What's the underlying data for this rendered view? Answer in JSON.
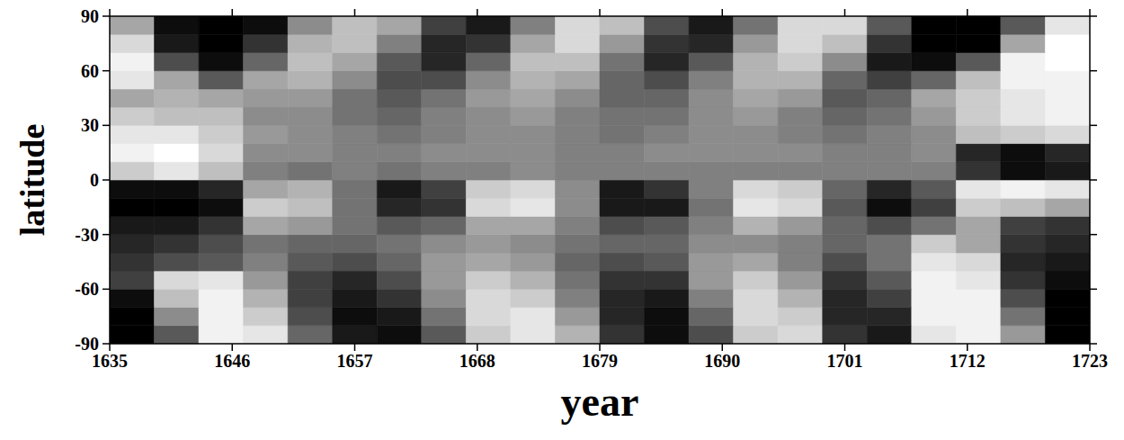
{
  "chart_data": {
    "type": "heatmap",
    "xlabel": "year",
    "ylabel": "latitude",
    "xlim": [
      1635,
      1723
    ],
    "xticks": [
      1635,
      1646,
      1657,
      1668,
      1679,
      1690,
      1701,
      1712,
      1723
    ],
    "ylim": [
      -90,
      90
    ],
    "yticks": [
      -90,
      -60,
      -30,
      0,
      30,
      60,
      90
    ],
    "zlim": [
      -1,
      1
    ],
    "x_bins": [
      1635,
      1639,
      1643,
      1647,
      1651,
      1655,
      1659,
      1663,
      1667,
      1671,
      1675,
      1679,
      1683,
      1687,
      1691,
      1695,
      1699,
      1703,
      1707,
      1711,
      1715,
      1719,
      1723
    ],
    "y_bins": [
      -90,
      -80,
      -70,
      -60,
      -50,
      -40,
      -30,
      -20,
      -10,
      0,
      10,
      20,
      30,
      40,
      50,
      60,
      70,
      80,
      90
    ],
    "cells": [
      [
        -1,
        -0.3,
        0.9,
        0.8,
        -0.2,
        -0.8,
        -0.9,
        -0.3,
        0.6,
        0.8,
        0.4,
        -0.6,
        -0.9,
        -0.4,
        0.6,
        0.7,
        -0.6,
        -0.8,
        0.8,
        0.9,
        0.2,
        -1
      ],
      [
        -1,
        0.1,
        0.9,
        0.6,
        -0.4,
        -0.9,
        -0.8,
        -0.1,
        0.7,
        0.8,
        0.2,
        -0.7,
        -0.9,
        -0.2,
        0.7,
        0.6,
        -0.7,
        -0.7,
        0.9,
        0.9,
        -0.1,
        -1
      ],
      [
        -0.9,
        0.5,
        0.9,
        0.4,
        -0.5,
        -0.8,
        -0.6,
        0.1,
        0.7,
        0.6,
        0,
        -0.7,
        -0.8,
        0,
        0.7,
        0.4,
        -0.7,
        -0.5,
        0.9,
        0.9,
        -0.4,
        -1
      ],
      [
        -0.5,
        0.7,
        0.8,
        0.2,
        -0.5,
        -0.7,
        -0.4,
        0.2,
        0.6,
        0.4,
        -0.1,
        -0.6,
        -0.6,
        0.2,
        0.6,
        0.2,
        -0.6,
        -0.3,
        0.9,
        0.8,
        -0.6,
        -0.9
      ],
      [
        -0.6,
        -0.4,
        -0.3,
        0,
        -0.3,
        -0.4,
        -0.2,
        0.2,
        0.3,
        0.2,
        -0.2,
        -0.4,
        -0.3,
        0.2,
        0.3,
        0,
        -0.4,
        -0.1,
        0.8,
        0.7,
        -0.7,
        -0.8
      ],
      [
        -0.7,
        -0.6,
        -0.4,
        -0.1,
        -0.2,
        -0.2,
        -0.1,
        0.1,
        0.2,
        0.1,
        -0.1,
        -0.2,
        -0.2,
        0.1,
        0.1,
        0,
        -0.2,
        -0.1,
        0.6,
        0.3,
        -0.6,
        -0.7
      ],
      [
        -0.8,
        -0.8,
        -0.6,
        0.3,
        0.2,
        -0.1,
        -0.3,
        -0.2,
        0.3,
        0.3,
        0,
        -0.4,
        -0.3,
        0,
        0.4,
        0.2,
        -0.2,
        -0.4,
        -0.1,
        0.3,
        -0.5,
        -0.6
      ],
      [
        -1,
        -1,
        -0.9,
        0.6,
        0.5,
        -0.1,
        -0.7,
        -0.6,
        0.7,
        0.8,
        0.1,
        -0.8,
        -0.8,
        -0.1,
        0.8,
        0.7,
        -0.3,
        -0.9,
        -0.5,
        0.6,
        0.5,
        0.3
      ],
      [
        -0.9,
        -0.9,
        -0.7,
        0.3,
        0.4,
        -0.1,
        -0.8,
        -0.5,
        0.6,
        0.7,
        0.1,
        -0.8,
        -0.6,
        0,
        0.7,
        0.6,
        -0.2,
        -0.7,
        -0.3,
        0.8,
        0.9,
        0.8
      ],
      [
        0.6,
        0.8,
        0.5,
        0,
        -0.1,
        0,
        -0.1,
        0,
        0,
        0.1,
        0,
        0,
        0,
        0,
        0,
        0,
        0,
        0,
        0,
        -0.6,
        -0.9,
        -0.8
      ],
      [
        0.9,
        1,
        0.7,
        0.1,
        0.1,
        0,
        0,
        0.1,
        0.1,
        0.1,
        0,
        0,
        0.1,
        0.1,
        0.1,
        0.1,
        0,
        0,
        0.1,
        -0.7,
        -0.9,
        -0.7
      ],
      [
        0.8,
        0.8,
        0.6,
        0.2,
        0.1,
        0,
        -0.1,
        0,
        0.1,
        0.1,
        0,
        -0.1,
        0,
        0.1,
        0.1,
        0,
        -0.1,
        0,
        0.1,
        0.5,
        0.6,
        0.7
      ],
      [
        0.6,
        0.5,
        0.5,
        0.1,
        0.1,
        -0.1,
        -0.2,
        0,
        0.1,
        0.2,
        0,
        -0.1,
        -0.1,
        0.1,
        0.2,
        0,
        -0.2,
        -0.1,
        0.2,
        0.6,
        0.8,
        0.9
      ],
      [
        0.3,
        0.4,
        0.3,
        0.2,
        0.2,
        -0.1,
        -0.3,
        -0.1,
        0.2,
        0.3,
        0.1,
        -0.2,
        -0.2,
        0.1,
        0.3,
        0.2,
        -0.3,
        -0.2,
        0.3,
        0.6,
        0.8,
        0.9
      ],
      [
        0.8,
        0.3,
        -0.3,
        0.3,
        0.4,
        0.1,
        -0.4,
        -0.4,
        0.1,
        0.4,
        0.3,
        -0.2,
        -0.4,
        0,
        0.4,
        0.4,
        -0.2,
        -0.5,
        -0.2,
        0.5,
        0.9,
        0.9
      ],
      [
        0.9,
        -0.4,
        -0.9,
        -0.2,
        0.5,
        0.3,
        -0.3,
        -0.7,
        -0.2,
        0.5,
        0.5,
        -0.1,
        -0.7,
        -0.3,
        0.4,
        0.6,
        0.1,
        -0.8,
        -0.9,
        -0.3,
        0.9,
        1
      ],
      [
        0.7,
        -0.8,
        -1,
        -0.6,
        0.4,
        0.5,
        0,
        -0.7,
        -0.6,
        0.3,
        0.7,
        0.2,
        -0.6,
        -0.7,
        0.2,
        0.7,
        0.5,
        -0.6,
        -1,
        -1,
        0.3,
        1
      ],
      [
        0.3,
        -0.9,
        -1,
        -0.9,
        0.1,
        0.5,
        0.3,
        -0.5,
        -0.8,
        0,
        0.7,
        0.5,
        -0.4,
        -0.8,
        -0.1,
        0.7,
        0.7,
        -0.3,
        -1,
        -1,
        -0.3,
        0.8
      ]
    ]
  }
}
